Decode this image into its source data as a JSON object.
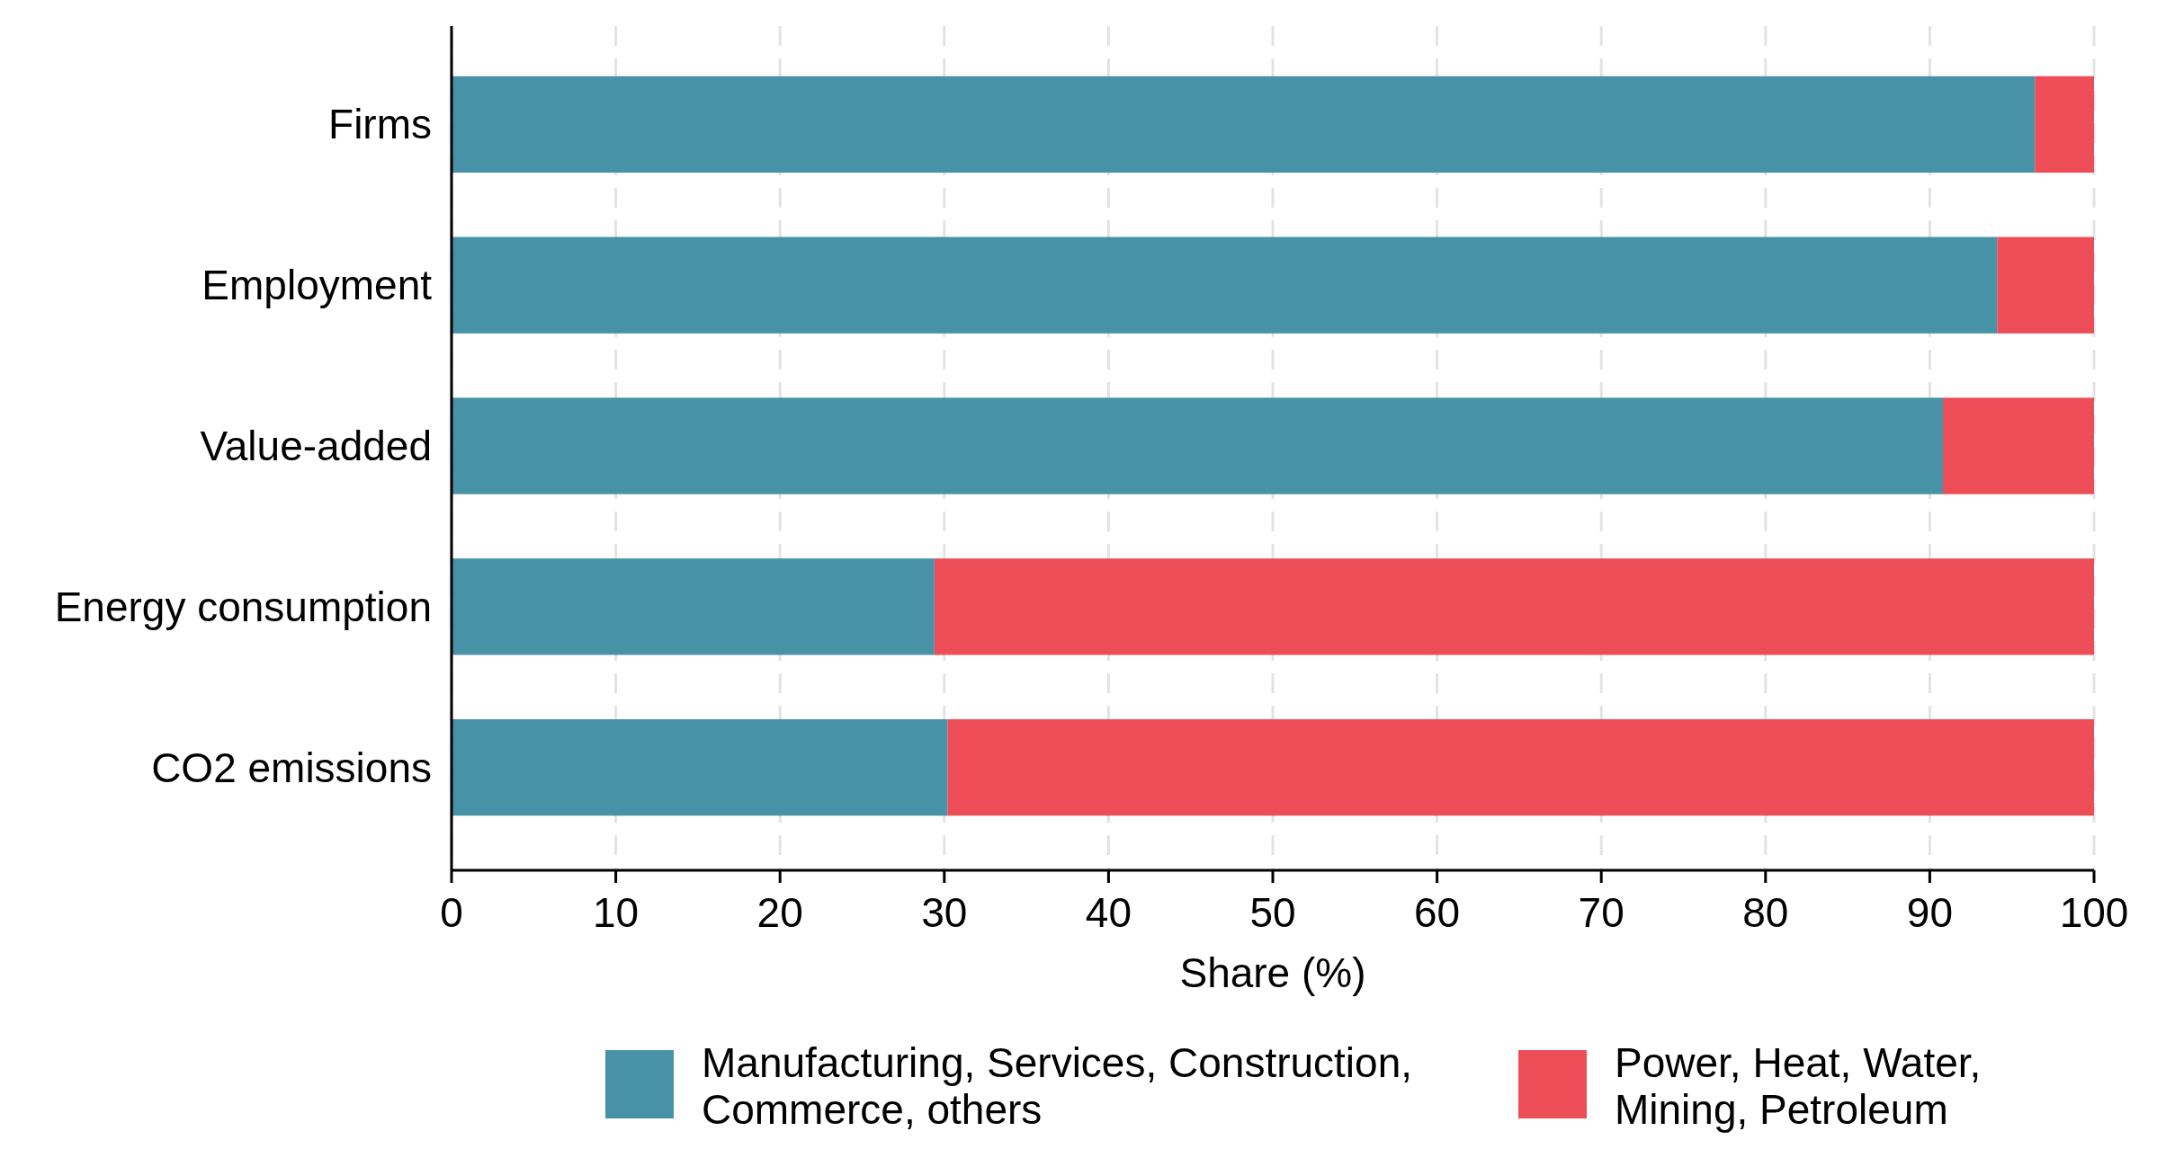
{
  "chart_data": {
    "type": "bar",
    "orientation": "horizontal",
    "stacked": true,
    "categories": [
      "Firms",
      "Employment",
      "Value-added",
      "Energy consumption",
      "CO2 emissions"
    ],
    "series": [
      {
        "name": "Manufacturing, Services, Construction, Commerce, others",
        "color": "#4892a7",
        "values": [
          96.4,
          94.1,
          90.8,
          29.4,
          30.2
        ]
      },
      {
        "name": "Power, Heat, Water, Mining, Petroleum",
        "color": "#ec4d56",
        "values": [
          3.6,
          5.9,
          9.2,
          70.6,
          69.8
        ]
      }
    ],
    "xlim": [
      0,
      100
    ],
    "xticks": [
      0,
      10,
      20,
      30,
      40,
      50,
      60,
      70,
      80,
      90,
      100
    ],
    "xlabel": "Share (%)",
    "grid": "x",
    "legend": "bottom"
  }
}
